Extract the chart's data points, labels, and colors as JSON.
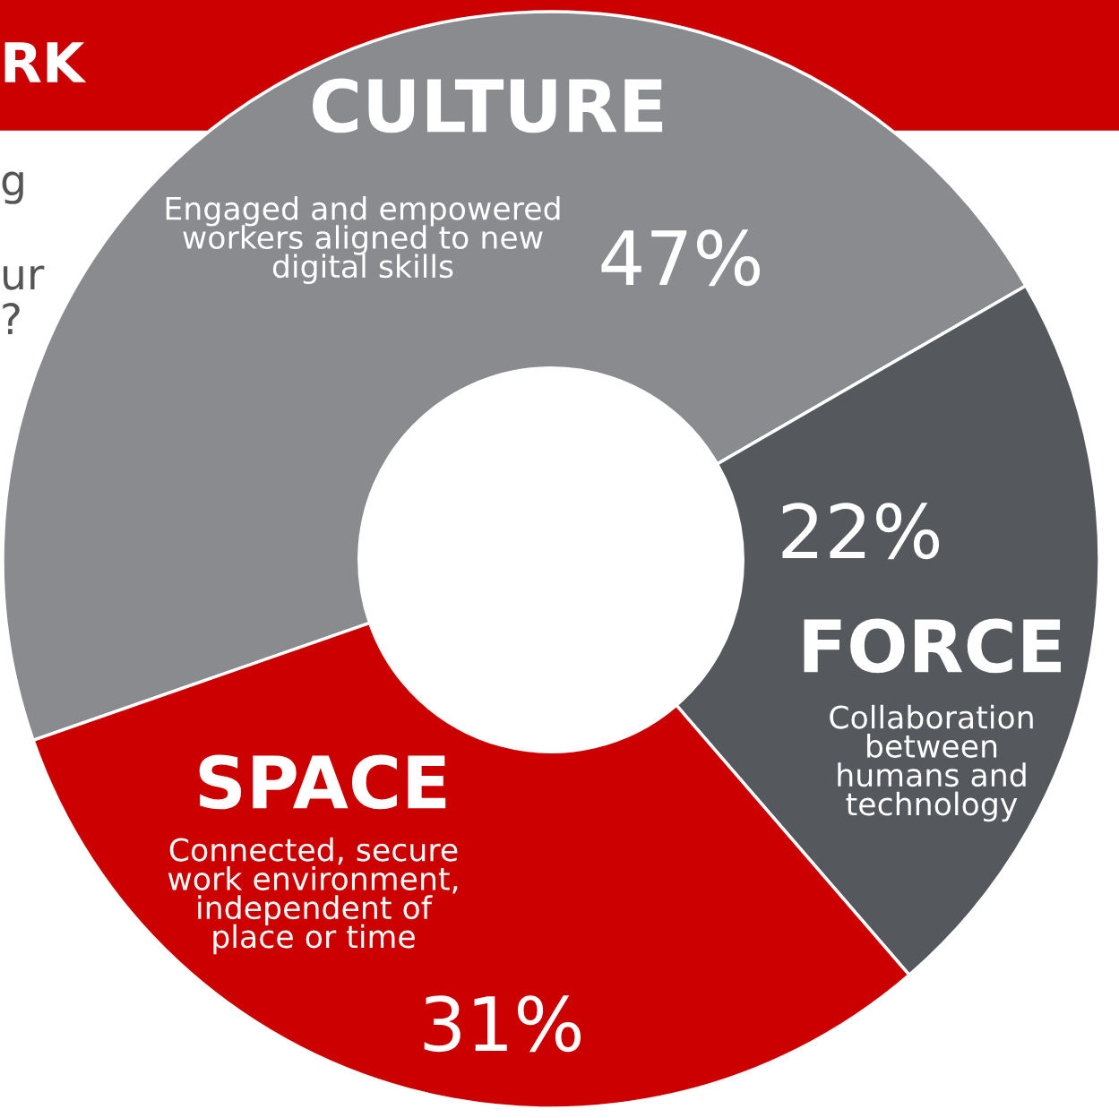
{
  "chart_data": {
    "type": "donut",
    "categories": [
      "CULTURE",
      "FORCE",
      "SPACE"
    ],
    "values": [
      47,
      22,
      31
    ],
    "colors": [
      "#8a8b8f",
      "#55585d",
      "#cc0000"
    ],
    "value_labels": [
      "47%",
      "22%",
      "31%"
    ],
    "annotations": [
      "Engaged and empowered\nworkers aligned to new\ndigital skills",
      "Collaboration\nbetween\nhumans and\ntechnology",
      "Connected, secure\nwork environment,\nindependent of\nplace or time",
      "RK",
      "g",
      "ur",
      "?"
    ]
  }
}
